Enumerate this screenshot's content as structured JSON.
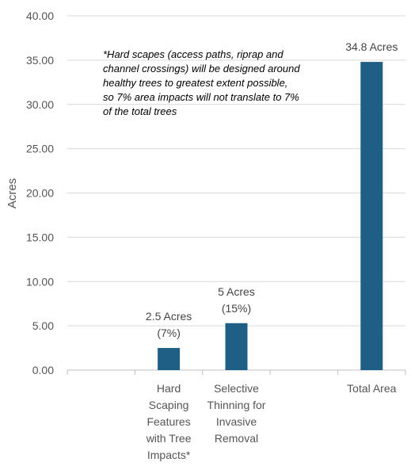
{
  "chart_data": {
    "type": "bar",
    "ylabel": "Acres",
    "ylim": [
      0,
      40
    ],
    "yticks": [
      "0.00",
      "5.00",
      "10.00",
      "15.00",
      "20.00",
      "25.00",
      "30.00",
      "35.00",
      "40.00"
    ],
    "grid": true,
    "categories": [
      [
        "Hard",
        "Scaping",
        "Features",
        "with Tree",
        "Impacts*"
      ],
      [
        "Selective",
        "Thinning for",
        "Invasive",
        "Removal"
      ],
      [
        "Total Area"
      ]
    ],
    "values": [
      2.5,
      5.3,
      34.8
    ],
    "data_labels": [
      [
        "2.5 Acres",
        "(7%)"
      ],
      [
        "5 Acres",
        "(15%)"
      ],
      [
        "34.8 Acres"
      ]
    ],
    "bar_color": "#1f5f86"
  },
  "annotation": "*Hard scapes (access paths, riprap and channel crossings) will be designed around healthy trees to greatest extent possible, so 7% area impacts will not translate to 7% of the total trees"
}
